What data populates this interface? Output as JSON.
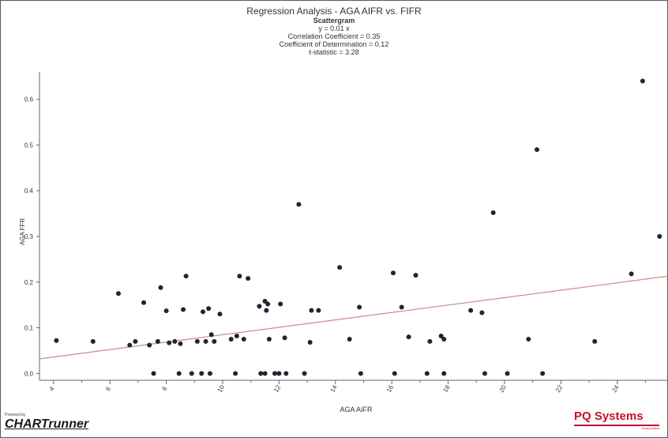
{
  "chart_data": {
    "type": "scatter",
    "title": "Regression Analysis - AGA AIFR vs. FIFR",
    "subtitle": "Scattergram",
    "stats": [
      "y = 0.01 x",
      "Correlation Coefficient = 0.35",
      "Coefficient of Determination = 0.12",
      "t-statistic = 3.28"
    ],
    "xlabel": "AGA AIFR",
    "ylabel": "AGA FFR",
    "xlim": [
      3.5,
      25.8
    ],
    "ylim": [
      -0.015,
      0.66
    ],
    "xticks": [
      4,
      6,
      8,
      10,
      12,
      14,
      16,
      18,
      20,
      22,
      24
    ],
    "yticks": [
      0.0,
      0.1,
      0.2,
      0.3,
      0.4,
      0.5,
      0.6
    ],
    "ytick_labels": [
      "0.0",
      "0.1",
      "0.2",
      "0.3",
      "0.4",
      "0.5",
      "0.6"
    ],
    "grid": false,
    "marker_color": "#1f2533",
    "line_color": "#c98a8a",
    "regression_line": [
      [
        3.5,
        0.032
      ],
      [
        25.8,
        0.213
      ]
    ],
    "points": [
      [
        4.1,
        0.072
      ],
      [
        5.4,
        0.07
      ],
      [
        6.3,
        0.175
      ],
      [
        6.7,
        0.062
      ],
      [
        6.9,
        0.07
      ],
      [
        7.2,
        0.155
      ],
      [
        7.4,
        0.062
      ],
      [
        7.55,
        0.0
      ],
      [
        7.7,
        0.07
      ],
      [
        7.8,
        0.188
      ],
      [
        8.0,
        0.137
      ],
      [
        8.1,
        0.067
      ],
      [
        8.3,
        0.07
      ],
      [
        8.45,
        0.0
      ],
      [
        8.5,
        0.065
      ],
      [
        8.6,
        0.14
      ],
      [
        8.7,
        0.213
      ],
      [
        8.9,
        0.0
      ],
      [
        9.1,
        0.07
      ],
      [
        9.25,
        0.0
      ],
      [
        9.3,
        0.135
      ],
      [
        9.4,
        0.07
      ],
      [
        9.5,
        0.142
      ],
      [
        9.55,
        0.0
      ],
      [
        9.6,
        0.085
      ],
      [
        9.7,
        0.07
      ],
      [
        9.9,
        0.13
      ],
      [
        10.3,
        0.075
      ],
      [
        10.45,
        0.0
      ],
      [
        10.5,
        0.082
      ],
      [
        10.6,
        0.213
      ],
      [
        10.75,
        0.075
      ],
      [
        10.9,
        0.208
      ],
      [
        11.3,
        0.147
      ],
      [
        11.35,
        0.0
      ],
      [
        11.5,
        0.0
      ],
      [
        11.5,
        0.158
      ],
      [
        11.55,
        0.138
      ],
      [
        11.6,
        0.152
      ],
      [
        11.65,
        0.075
      ],
      [
        11.85,
        0.0
      ],
      [
        12.0,
        0.0
      ],
      [
        12.05,
        0.152
      ],
      [
        12.2,
        0.078
      ],
      [
        12.25,
        0.0
      ],
      [
        12.7,
        0.37
      ],
      [
        12.9,
        0.0
      ],
      [
        13.1,
        0.068
      ],
      [
        13.15,
        0.138
      ],
      [
        13.4,
        0.138
      ],
      [
        14.15,
        0.232
      ],
      [
        14.5,
        0.075
      ],
      [
        14.85,
        0.145
      ],
      [
        14.9,
        0.0
      ],
      [
        16.05,
        0.22
      ],
      [
        16.1,
        0.0
      ],
      [
        16.35,
        0.145
      ],
      [
        16.6,
        0.08
      ],
      [
        16.85,
        0.215
      ],
      [
        17.25,
        0.0
      ],
      [
        17.35,
        0.07
      ],
      [
        17.75,
        0.082
      ],
      [
        17.85,
        0.075
      ],
      [
        17.85,
        0.0
      ],
      [
        18.8,
        0.138
      ],
      [
        19.2,
        0.133
      ],
      [
        19.3,
        0.0
      ],
      [
        19.6,
        0.352
      ],
      [
        20.1,
        0.0
      ],
      [
        20.85,
        0.075
      ],
      [
        21.15,
        0.49
      ],
      [
        21.35,
        0.0
      ],
      [
        23.2,
        0.07
      ],
      [
        24.5,
        0.218
      ],
      [
        24.9,
        0.64
      ],
      [
        25.5,
        0.3
      ]
    ]
  },
  "branding": {
    "powered_by": "Powered by",
    "left_logo": "CHARTrunner",
    "right_logo": "PQ Systems",
    "right_tagline": "Incorporated"
  }
}
